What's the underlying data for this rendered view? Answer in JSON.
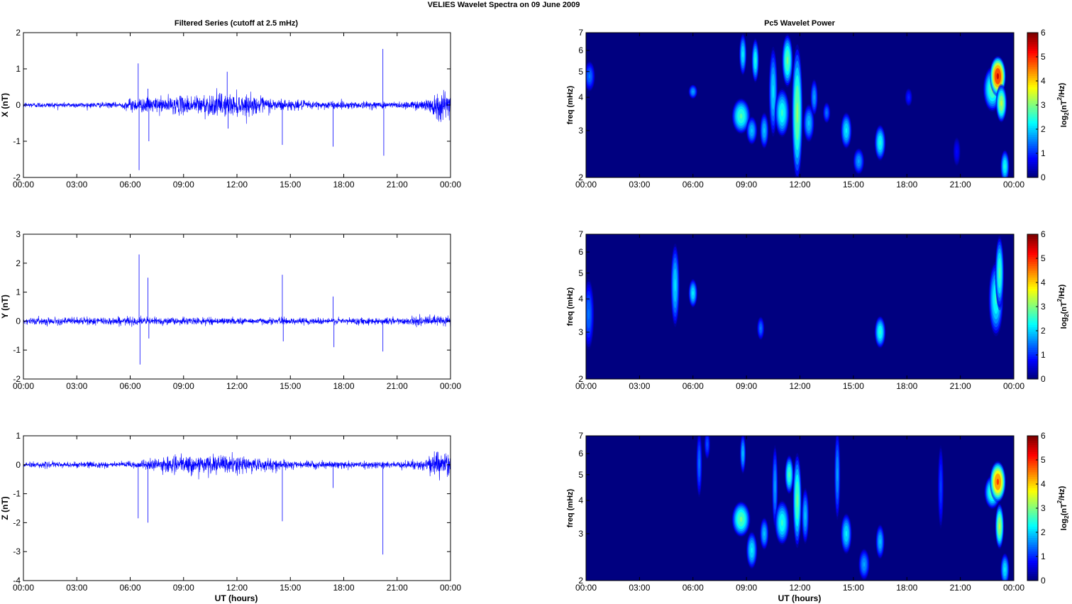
{
  "figure": {
    "title": "VELIES Wavelet Spectra on 09 June      2009",
    "left_title": "Filtered Series (cutoff at 2.5 mHz)",
    "right_title": "Pc5 Wavelet Power",
    "xlabel": "UT (hours)",
    "freq_label": "freq (mHz)",
    "colorbar_label_base": "log",
    "colorbar_label_sub": "2",
    "colorbar_label_mid": "(nT",
    "colorbar_label_sup": "2",
    "colorbar_label_end": "/Hz)",
    "x_ticks": [
      "00:00",
      "03:00",
      "06:00",
      "09:00",
      "12:00",
      "15:00",
      "18:00",
      "21:00",
      "00:00"
    ],
    "freq_ticks": [
      "2",
      "3",
      "4",
      "5",
      "6",
      "7"
    ],
    "colorbar_ticks": [
      "0",
      "1",
      "2",
      "3",
      "4",
      "5",
      "6"
    ],
    "colors": {
      "series": "#0000ff",
      "background_power": "#00008f"
    }
  },
  "chart_data": [
    {
      "type": "line",
      "component": "X",
      "ylabel": "X (nT)",
      "xlim": [
        0,
        24
      ],
      "ylim": [
        -2,
        2
      ],
      "y_ticks": [
        "-2",
        "-1",
        "0",
        "1",
        "2"
      ],
      "noise_amplitude": [
        [
          0,
          0.08
        ],
        [
          5.5,
          0.08
        ],
        [
          6.0,
          0.2
        ],
        [
          8.5,
          0.25
        ],
        [
          11,
          0.35
        ],
        [
          12.5,
          0.3
        ],
        [
          14,
          0.2
        ],
        [
          16,
          0.12
        ],
        [
          21,
          0.1
        ],
        [
          22.5,
          0.15
        ],
        [
          23.3,
          0.45
        ],
        [
          24,
          0.4
        ]
      ],
      "spikes": [
        {
          "t": 6.45,
          "y": 1.15
        },
        {
          "t": 6.5,
          "y": -1.8
        },
        {
          "t": 7.0,
          "y": 0.45
        },
        {
          "t": 7.05,
          "y": -1.0
        },
        {
          "t": 11.45,
          "y": 0.92
        },
        {
          "t": 11.5,
          "y": -0.65
        },
        {
          "t": 14.55,
          "y": -1.1
        },
        {
          "t": 17.4,
          "y": -1.15
        },
        {
          "t": 20.2,
          "y": 1.55
        },
        {
          "t": 20.25,
          "y": -1.4
        }
      ]
    },
    {
      "type": "line",
      "component": "Y",
      "ylabel": "Y (nT)",
      "xlim": [
        0,
        24
      ],
      "ylim": [
        -2,
        3
      ],
      "y_ticks": [
        "-2",
        "-1",
        "0",
        "1",
        "2",
        "3"
      ],
      "noise_amplitude": [
        [
          0,
          0.12
        ],
        [
          5,
          0.15
        ],
        [
          6,
          0.15
        ],
        [
          12,
          0.12
        ],
        [
          18,
          0.12
        ],
        [
          22.5,
          0.15
        ],
        [
          23.5,
          0.25
        ],
        [
          24,
          0.2
        ]
      ],
      "spikes": [
        {
          "t": 6.5,
          "y": 2.3
        },
        {
          "t": 6.55,
          "y": -1.5
        },
        {
          "t": 7.0,
          "y": 1.5
        },
        {
          "t": 7.05,
          "y": -0.6
        },
        {
          "t": 14.55,
          "y": 1.6
        },
        {
          "t": 14.6,
          "y": -0.7
        },
        {
          "t": 17.4,
          "y": 0.85
        },
        {
          "t": 17.45,
          "y": -0.9
        },
        {
          "t": 20.2,
          "y": -1.05
        }
      ]
    },
    {
      "type": "line",
      "component": "Z",
      "ylabel": "Z (nT)",
      "xlim": [
        0,
        24
      ],
      "ylim": [
        -4,
        1
      ],
      "y_ticks": [
        "-4",
        "-3",
        "-2",
        "-1",
        "0",
        "1"
      ],
      "noise_amplitude": [
        [
          0,
          0.1
        ],
        [
          6,
          0.12
        ],
        [
          8.5,
          0.3
        ],
        [
          11,
          0.35
        ],
        [
          12.5,
          0.3
        ],
        [
          14,
          0.2
        ],
        [
          16,
          0.12
        ],
        [
          21,
          0.12
        ],
        [
          22.5,
          0.2
        ],
        [
          23.3,
          0.5
        ],
        [
          24,
          0.45
        ]
      ],
      "spikes": [
        {
          "t": 6.45,
          "y": -1.85
        },
        {
          "t": 7.0,
          "y": -2.0
        },
        {
          "t": 14.55,
          "y": -1.95
        },
        {
          "t": 17.4,
          "y": -0.8
        },
        {
          "t": 20.2,
          "y": -3.1
        }
      ]
    },
    {
      "type": "heatmap",
      "component": "X",
      "xlim": [
        0,
        24
      ],
      "ylim_mhz": [
        2,
        7
      ],
      "zlim": [
        0,
        6
      ],
      "blobs": [
        {
          "t": 0.2,
          "f": 4.8,
          "amp": 1.5,
          "w": 0.15,
          "h": 0.6
        },
        {
          "t": 6.0,
          "f": 4.2,
          "amp": 1.8,
          "w": 0.12,
          "h": 0.25
        },
        {
          "t": 8.7,
          "f": 3.4,
          "amp": 2.8,
          "w": 0.25,
          "h": 0.5
        },
        {
          "t": 8.8,
          "f": 5.8,
          "amp": 2.3,
          "w": 0.1,
          "h": 1.0
        },
        {
          "t": 9.3,
          "f": 3.0,
          "amp": 2.0,
          "w": 0.15,
          "h": 0.35
        },
        {
          "t": 9.5,
          "f": 5.5,
          "amp": 2.5,
          "w": 0.1,
          "h": 1.0
        },
        {
          "t": 10.0,
          "f": 3.0,
          "amp": 2.0,
          "w": 0.12,
          "h": 0.45
        },
        {
          "t": 10.5,
          "f": 4.2,
          "amp": 2.2,
          "w": 0.12,
          "h": 1.5
        },
        {
          "t": 11.0,
          "f": 3.5,
          "amp": 2.6,
          "w": 0.2,
          "h": 0.7
        },
        {
          "t": 11.3,
          "f": 5.5,
          "amp": 3.0,
          "w": 0.15,
          "h": 1.2
        },
        {
          "t": 11.85,
          "f": 3.5,
          "amp": 3.2,
          "w": 0.15,
          "h": 1.8
        },
        {
          "t": 12.5,
          "f": 3.2,
          "amp": 2.0,
          "w": 0.15,
          "h": 0.5
        },
        {
          "t": 12.8,
          "f": 4.0,
          "amp": 1.8,
          "w": 0.1,
          "h": 0.6
        },
        {
          "t": 13.5,
          "f": 3.5,
          "amp": 1.5,
          "w": 0.1,
          "h": 0.3
        },
        {
          "t": 14.6,
          "f": 3.0,
          "amp": 2.3,
          "w": 0.15,
          "h": 0.45
        },
        {
          "t": 15.3,
          "f": 2.3,
          "amp": 1.8,
          "w": 0.15,
          "h": 0.25
        },
        {
          "t": 16.5,
          "f": 2.7,
          "amp": 2.5,
          "w": 0.15,
          "h": 0.4
        },
        {
          "t": 18.1,
          "f": 4.0,
          "amp": 1.0,
          "w": 0.1,
          "h": 0.3
        },
        {
          "t": 20.8,
          "f": 2.5,
          "amp": 0.8,
          "w": 0.1,
          "h": 0.3
        },
        {
          "t": 22.8,
          "f": 4.3,
          "amp": 3.0,
          "w": 0.25,
          "h": 0.8
        },
        {
          "t": 23.1,
          "f": 4.8,
          "amp": 5.6,
          "w": 0.22,
          "h": 0.8
        },
        {
          "t": 23.3,
          "f": 3.8,
          "amp": 3.5,
          "w": 0.15,
          "h": 0.6
        },
        {
          "t": 23.5,
          "f": 2.2,
          "amp": 2.5,
          "w": 0.12,
          "h": 0.3
        }
      ]
    },
    {
      "type": "heatmap",
      "component": "Y",
      "xlim": [
        0,
        24
      ],
      "ylim_mhz": [
        2,
        7
      ],
      "zlim": [
        0,
        6
      ],
      "blobs": [
        {
          "t": 0.15,
          "f": 3.5,
          "amp": 1.5,
          "w": 0.15,
          "h": 1.0
        },
        {
          "t": 5.0,
          "f": 4.5,
          "amp": 2.2,
          "w": 0.12,
          "h": 1.5
        },
        {
          "t": 6.0,
          "f": 4.2,
          "amp": 2.3,
          "w": 0.12,
          "h": 0.5
        },
        {
          "t": 9.8,
          "f": 3.1,
          "amp": 1.5,
          "w": 0.1,
          "h": 0.3
        },
        {
          "t": 16.5,
          "f": 3.0,
          "amp": 2.6,
          "w": 0.15,
          "h": 0.4
        },
        {
          "t": 23.0,
          "f": 4.0,
          "amp": 2.6,
          "w": 0.2,
          "h": 1.2
        },
        {
          "t": 23.2,
          "f": 5.0,
          "amp": 2.8,
          "w": 0.12,
          "h": 1.5
        }
      ]
    },
    {
      "type": "heatmap",
      "component": "Z",
      "xlim": [
        0,
        24
      ],
      "ylim_mhz": [
        2,
        7
      ],
      "zlim": [
        0,
        6
      ],
      "blobs": [
        {
          "t": 6.35,
          "f": 5.5,
          "amp": 1.5,
          "w": 0.08,
          "h": 1.5
        },
        {
          "t": 6.8,
          "f": 6.5,
          "amp": 1.3,
          "w": 0.08,
          "h": 0.8
        },
        {
          "t": 8.7,
          "f": 3.4,
          "amp": 3.0,
          "w": 0.25,
          "h": 0.5
        },
        {
          "t": 8.8,
          "f": 6.0,
          "amp": 2.0,
          "w": 0.08,
          "h": 1.0
        },
        {
          "t": 9.3,
          "f": 2.6,
          "amp": 2.3,
          "w": 0.15,
          "h": 0.4
        },
        {
          "t": 10.0,
          "f": 3.0,
          "amp": 2.0,
          "w": 0.12,
          "h": 0.4
        },
        {
          "t": 10.6,
          "f": 4.5,
          "amp": 1.8,
          "w": 0.08,
          "h": 1.5
        },
        {
          "t": 11.0,
          "f": 3.3,
          "amp": 2.6,
          "w": 0.2,
          "h": 0.6
        },
        {
          "t": 11.4,
          "f": 5.0,
          "amp": 2.8,
          "w": 0.12,
          "h": 0.8
        },
        {
          "t": 11.85,
          "f": 4.0,
          "amp": 3.0,
          "w": 0.12,
          "h": 1.5
        },
        {
          "t": 12.3,
          "f": 3.5,
          "amp": 2.0,
          "w": 0.1,
          "h": 0.8
        },
        {
          "t": 14.1,
          "f": 5.0,
          "amp": 1.8,
          "w": 0.08,
          "h": 1.8
        },
        {
          "t": 14.6,
          "f": 3.0,
          "amp": 2.3,
          "w": 0.15,
          "h": 0.5
        },
        {
          "t": 15.6,
          "f": 2.3,
          "amp": 1.8,
          "w": 0.15,
          "h": 0.3
        },
        {
          "t": 16.5,
          "f": 2.8,
          "amp": 2.0,
          "w": 0.12,
          "h": 0.4
        },
        {
          "t": 19.9,
          "f": 4.5,
          "amp": 1.2,
          "w": 0.08,
          "h": 1.5
        },
        {
          "t": 22.8,
          "f": 4.3,
          "amp": 3.0,
          "w": 0.22,
          "h": 0.6
        },
        {
          "t": 23.1,
          "f": 4.7,
          "amp": 5.0,
          "w": 0.22,
          "h": 0.8
        },
        {
          "t": 23.2,
          "f": 3.2,
          "amp": 3.5,
          "w": 0.12,
          "h": 0.6
        },
        {
          "t": 23.5,
          "f": 2.2,
          "amp": 2.3,
          "w": 0.12,
          "h": 0.3
        }
      ]
    }
  ]
}
